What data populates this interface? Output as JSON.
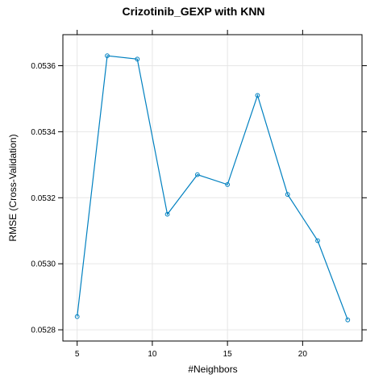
{
  "chart_data": {
    "type": "line",
    "title": "Crizotinib_GEXP with KNN",
    "xlabel": "#Neighbors",
    "ylabel": "RMSE (Cross-Validation)",
    "x": [
      5,
      7,
      9,
      11,
      13,
      15,
      17,
      19,
      21,
      23
    ],
    "series": [
      {
        "values": [
          0.05284,
          0.05363,
          0.05362,
          0.05315,
          0.05327,
          0.05324,
          0.05351,
          0.05321,
          0.05307,
          0.05283
        ]
      }
    ],
    "xticks": [
      5,
      10,
      15,
      20
    ],
    "xtick_labels": [
      "5",
      "10",
      "15",
      "20"
    ],
    "yticks": [
      0.0528,
      0.053,
      0.0532,
      0.0534,
      0.0536
    ],
    "ytick_labels": [
      "0.0528",
      "0.0530",
      "0.0532",
      "0.0534",
      "0.0536"
    ],
    "xlim": [
      4.05,
      23.95
    ],
    "ylim": [
      0.052766,
      0.053694
    ],
    "grid": true,
    "line_color": "#0080C0",
    "grid_color": "#E6E6E6"
  }
}
